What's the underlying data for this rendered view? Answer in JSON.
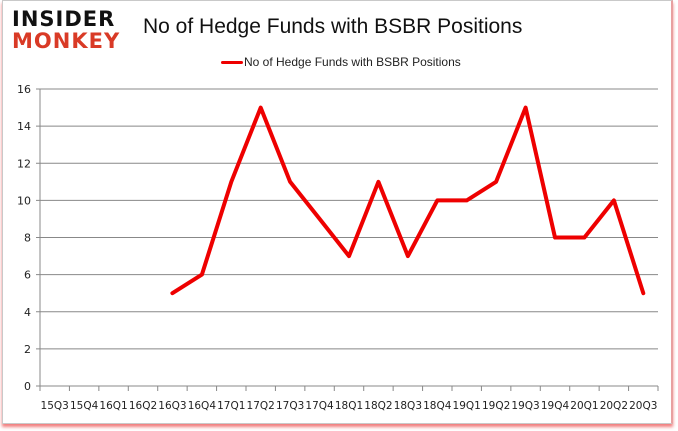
{
  "header": {
    "logo_line1": "INSIDER",
    "logo_line2": "MONKEY",
    "title": "No of Hedge Funds with BSBR Positions"
  },
  "legend": {
    "label": "No of Hedge Funds with BSBR Positions",
    "color": "#ee0000"
  },
  "chart_data": {
    "type": "line",
    "title": "No of Hedge Funds with BSBR Positions",
    "xlabel": "",
    "ylabel": "",
    "ylim": [
      0,
      16
    ],
    "yticks": [
      0,
      2,
      4,
      6,
      8,
      10,
      12,
      14,
      16
    ],
    "grid": true,
    "legend_position": "top",
    "categories": [
      "15Q3",
      "15Q4",
      "16Q1",
      "16Q2",
      "16Q3",
      "16Q4",
      "17Q1",
      "17Q2",
      "17Q3",
      "17Q4",
      "18Q1",
      "18Q2",
      "18Q3",
      "18Q4",
      "19Q1",
      "19Q2",
      "19Q3",
      "19Q4",
      "20Q1",
      "20Q2",
      "20Q3"
    ],
    "series": [
      {
        "name": "No of Hedge Funds with BSBR Positions",
        "color": "#ee0000",
        "values": [
          null,
          null,
          null,
          null,
          5,
          6,
          11,
          15,
          11,
          9,
          7,
          11,
          7,
          10,
          10,
          11,
          15,
          8,
          8,
          10,
          5
        ]
      }
    ]
  }
}
